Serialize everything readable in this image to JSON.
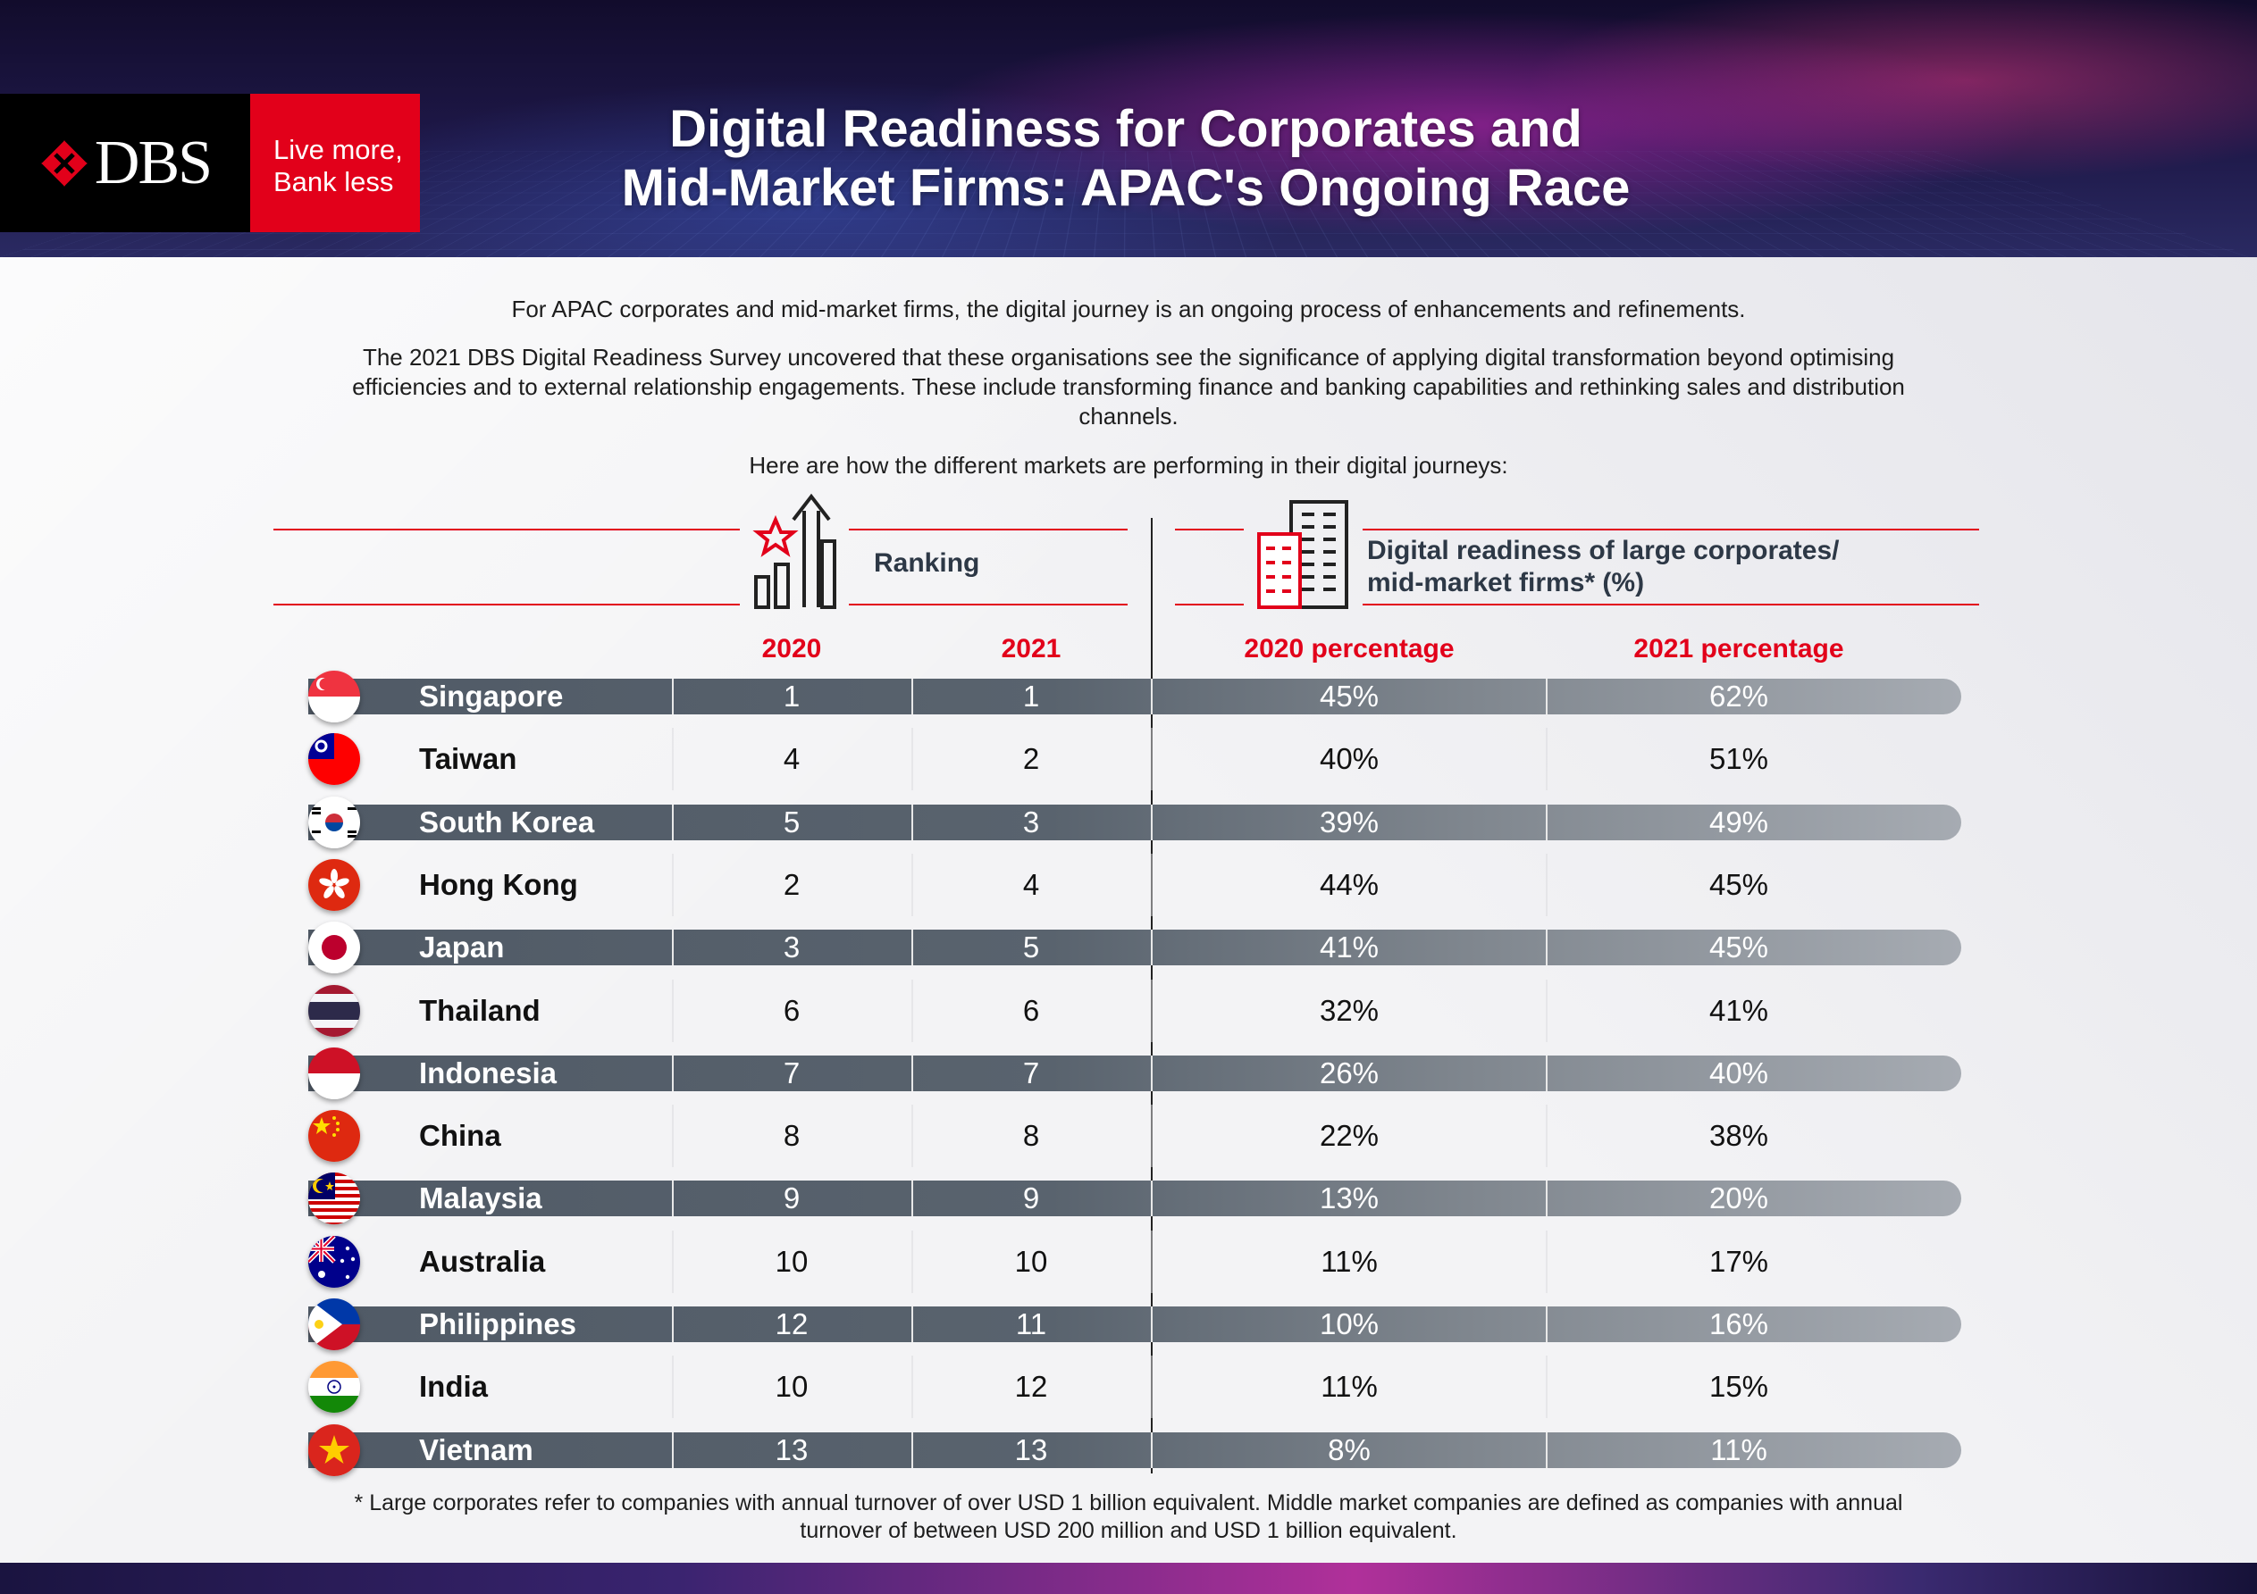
{
  "brand": {
    "logo_text": "DBS",
    "tagline_line1": "Live more,",
    "tagline_line2": "Bank less"
  },
  "title_line1": "Digital Readiness for Corporates and",
  "title_line2": "Mid-Market Firms: APAC's Ongoing Race",
  "intro": {
    "p1": "For APAC corporates and mid-market firms, the digital journey is an ongoing process of enhancements and refinements.",
    "p2": "The 2021 DBS Digital Readiness Survey uncovered that these organisations see the significance of applying digital transformation beyond optimising efficiencies and to external relationship engagements. These include transforming finance and banking capabilities and rethinking sales and distribution channels.",
    "p3": "Here are how the different markets are performing in their digital journeys:"
  },
  "sections": {
    "ranking_label": "Ranking",
    "readiness_label_line1": "Digital readiness of large corporates/",
    "readiness_label_line2": "mid-market firms* (%)"
  },
  "columns": {
    "rank_2020": "2020",
    "rank_2021": "2021",
    "pct_2020": "2020 percentage",
    "pct_2021": "2021 percentage"
  },
  "rows": [
    {
      "country": "Singapore",
      "flag": "singapore-flag",
      "rank_2020": "1",
      "rank_2021": "1",
      "pct_2020": "45%",
      "pct_2021": "62%"
    },
    {
      "country": "Taiwan",
      "flag": "taiwan-flag",
      "rank_2020": "4",
      "rank_2021": "2",
      "pct_2020": "40%",
      "pct_2021": "51%"
    },
    {
      "country": "South Korea",
      "flag": "south-korea-flag",
      "rank_2020": "5",
      "rank_2021": "3",
      "pct_2020": "39%",
      "pct_2021": "49%"
    },
    {
      "country": "Hong Kong",
      "flag": "hong-kong-flag",
      "rank_2020": "2",
      "rank_2021": "4",
      "pct_2020": "44%",
      "pct_2021": "45%"
    },
    {
      "country": "Japan",
      "flag": "japan-flag",
      "rank_2020": "3",
      "rank_2021": "5",
      "pct_2020": "41%",
      "pct_2021": "45%"
    },
    {
      "country": "Thailand",
      "flag": "thailand-flag",
      "rank_2020": "6",
      "rank_2021": "6",
      "pct_2020": "32%",
      "pct_2021": "41%"
    },
    {
      "country": "Indonesia",
      "flag": "indonesia-flag",
      "rank_2020": "7",
      "rank_2021": "7",
      "pct_2020": "26%",
      "pct_2021": "40%"
    },
    {
      "country": "China",
      "flag": "china-flag",
      "rank_2020": "8",
      "rank_2021": "8",
      "pct_2020": "22%",
      "pct_2021": "38%"
    },
    {
      "country": "Malaysia",
      "flag": "malaysia-flag",
      "rank_2020": "9",
      "rank_2021": "9",
      "pct_2020": "13%",
      "pct_2021": "20%"
    },
    {
      "country": "Australia",
      "flag": "australia-flag",
      "rank_2020": "10",
      "rank_2021": "10",
      "pct_2020": "11%",
      "pct_2021": "17%"
    },
    {
      "country": "Philippines",
      "flag": "philippines-flag",
      "rank_2020": "12",
      "rank_2021": "11",
      "pct_2020": "10%",
      "pct_2021": "16%"
    },
    {
      "country": "India",
      "flag": "india-flag",
      "rank_2020": "10",
      "rank_2021": "12",
      "pct_2020": "11%",
      "pct_2021": "15%"
    },
    {
      "country": "Vietnam",
      "flag": "vietnam-flag",
      "rank_2020": "13",
      "rank_2021": "13",
      "pct_2020": "8%",
      "pct_2021": "11%"
    }
  ],
  "footnote": "* Large corporates refer to companies with annual turnover of over USD 1 billion equivalent. Middle market companies are defined as companies with annual turnover of between USD 200 million and USD 1 billion equivalent.",
  "colors": {
    "accent_red": "#e2001a",
    "row_shade": "#59636e",
    "header_dark": "#1e1848"
  }
}
